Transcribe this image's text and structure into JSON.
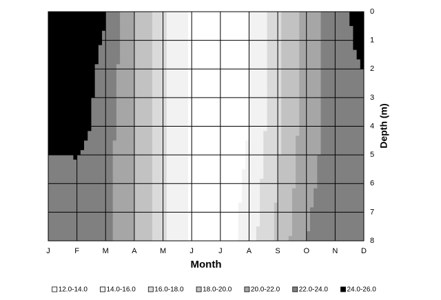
{
  "chart_data": {
    "type": "contour",
    "x_label": "Month",
    "y_label": "Depth (m)",
    "categories": [
      "J",
      "F",
      "M",
      "A",
      "M",
      "J",
      "J",
      "A",
      "S",
      "O",
      "N",
      "D"
    ],
    "y": [
      0,
      1,
      2,
      3,
      4,
      5,
      6,
      7,
      8
    ],
    "ylim": [
      0,
      8
    ],
    "yticks": [
      0,
      1,
      2,
      3,
      4,
      5,
      6,
      7,
      8
    ],
    "y_inverted": true,
    "y_axis_side": "right",
    "grid": true,
    "z": [
      [
        25,
        25,
        24.2,
        20,
        16.5,
        13.8,
        12.5,
        14,
        17.5,
        21,
        23,
        25
      ],
      [
        25,
        25,
        23.8,
        20,
        16.5,
        13.8,
        12.5,
        14,
        17.5,
        21,
        23,
        24.6
      ],
      [
        25,
        25,
        23.5,
        20,
        16.5,
        13.8,
        12.5,
        14,
        17.5,
        21,
        23,
        24.1
      ],
      [
        25,
        25,
        23.2,
        20,
        16.5,
        13.8,
        12.5,
        14,
        17.5,
        21,
        23,
        23.6
      ],
      [
        25,
        25,
        23,
        20,
        16.5,
        13.8,
        12.5,
        14,
        17.5,
        21,
        23,
        23.2
      ],
      [
        24,
        24.1,
        22.8,
        20,
        16.5,
        13.8,
        12.5,
        14.2,
        17.8,
        21.2,
        23,
        23.2
      ],
      [
        23,
        23,
        22.5,
        20,
        16.5,
        13.8,
        12.5,
        14.5,
        18,
        21.5,
        23,
        23.2
      ],
      [
        23,
        23,
        22.5,
        20,
        16.5,
        13.8,
        12.5,
        14.8,
        18.3,
        21.8,
        23,
        23.2
      ],
      [
        23,
        23,
        22.5,
        20,
        16.5,
        13.8,
        12.5,
        15,
        18.5,
        22,
        23,
        23.2
      ]
    ],
    "bands": [
      {
        "label": "12.0-14.0",
        "range": [
          12,
          14
        ],
        "color": "#ffffff"
      },
      {
        "label": "14.0-16.0",
        "range": [
          14,
          16
        ],
        "color": "#f2f2f2"
      },
      {
        "label": "16.0-18.0",
        "range": [
          16,
          18
        ],
        "color": "#dadada"
      },
      {
        "label": "18.0-20.0",
        "range": [
          18,
          20
        ],
        "color": "#c2c2c2"
      },
      {
        "label": "20.0-22.0",
        "range": [
          20,
          22
        ],
        "color": "#a6a6a6"
      },
      {
        "label": "22.0-24.0",
        "range": [
          22,
          24
        ],
        "color": "#808080"
      },
      {
        "label": "24.0-26.0",
        "range": [
          24,
          26
        ],
        "color": "#000000"
      }
    ]
  }
}
